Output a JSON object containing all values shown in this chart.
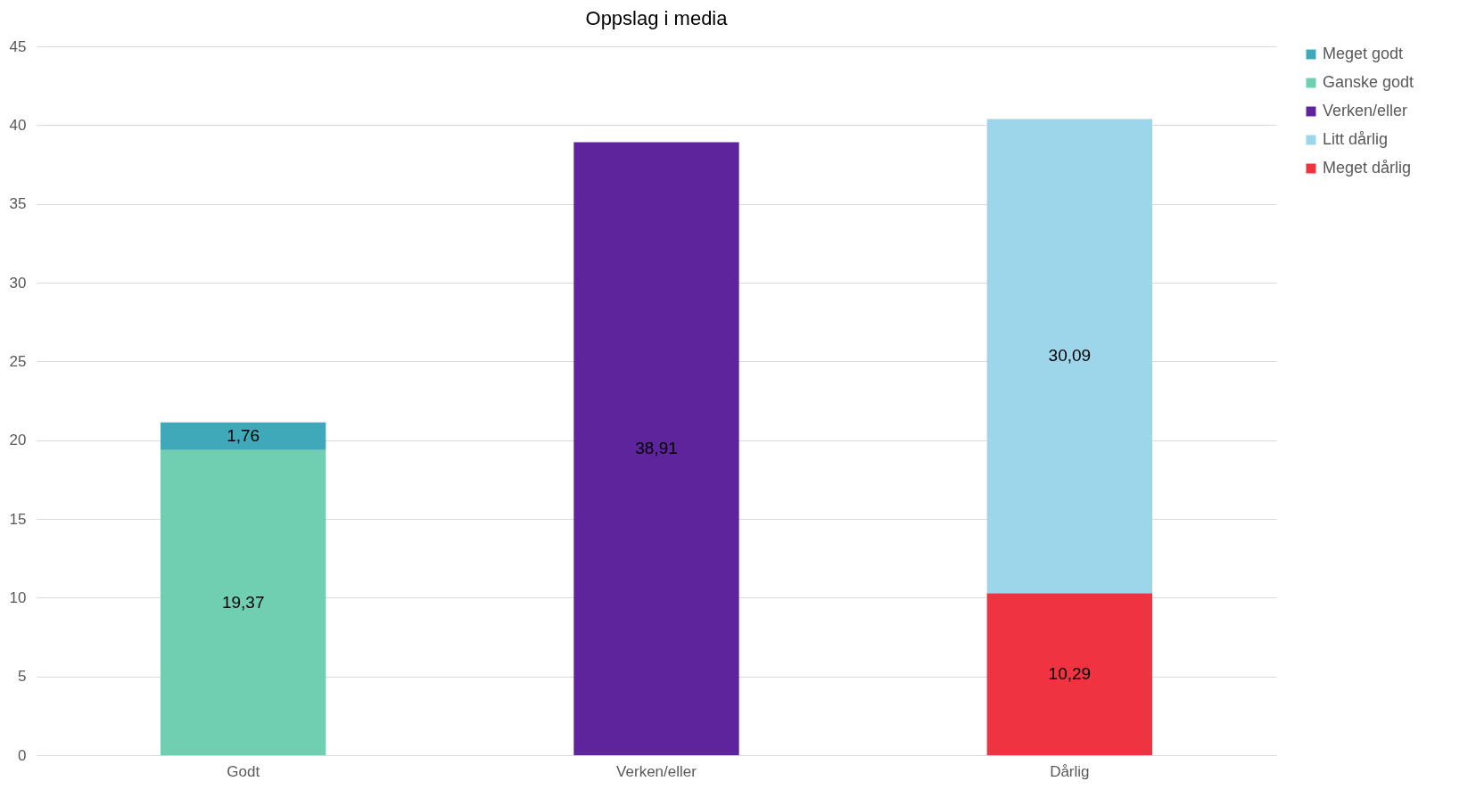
{
  "chart_data": {
    "type": "bar",
    "title": "Oppslag i media",
    "categories": [
      "Godt",
      "Verken/eller",
      "Dårlig"
    ],
    "stacked": true,
    "ylim": [
      0,
      45
    ],
    "yticks": [
      0,
      5,
      10,
      15,
      20,
      25,
      30,
      35,
      40,
      45
    ],
    "grid": "y",
    "legend": "right",
    "series": [
      {
        "name": "Meget dårlig",
        "color": "#ef3340",
        "values": [
          null,
          null,
          10.29
        ],
        "value_labels": [
          null,
          null,
          "10,29"
        ]
      },
      {
        "name": "Litt dårlig",
        "color": "#9dd6ea",
        "values": [
          null,
          null,
          30.09
        ],
        "value_labels": [
          null,
          null,
          "30,09"
        ]
      },
      {
        "name": "Verken/eller",
        "color": "#5e249b",
        "values": [
          null,
          38.91,
          null
        ],
        "value_labels": [
          null,
          "38,91",
          null
        ]
      },
      {
        "name": "Ganske godt",
        "color": "#6fcfb0",
        "values": [
          19.37,
          null,
          null
        ],
        "value_labels": [
          "19,37",
          null,
          null
        ]
      },
      {
        "name": "Meget godt",
        "color": "#3fa9b9",
        "values": [
          1.76,
          null,
          null
        ],
        "value_labels": [
          "1,76",
          null,
          null
        ]
      }
    ]
  }
}
